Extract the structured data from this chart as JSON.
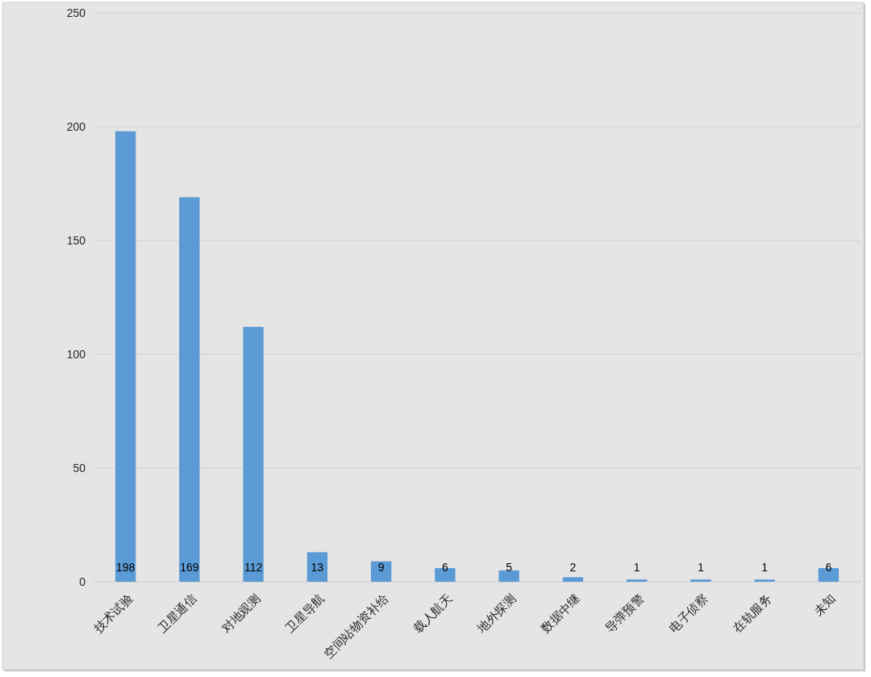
{
  "chart_data": {
    "type": "bar",
    "categories": [
      "技术试验",
      "卫星通信",
      "对地观测",
      "卫星导航",
      "空间站物资补给",
      "载人航天",
      "地外探测",
      "数据中继",
      "导弹预警",
      "电子侦察",
      "在轨服务",
      "未知"
    ],
    "values": [
      198,
      169,
      112,
      13,
      9,
      6,
      5,
      2,
      1,
      1,
      1,
      6
    ],
    "color": "#5b9bd5",
    "ylim": [
      0,
      250
    ],
    "yticks": [
      0,
      50,
      100,
      150,
      200,
      250
    ],
    "grid": "y",
    "data_labels": true
  }
}
